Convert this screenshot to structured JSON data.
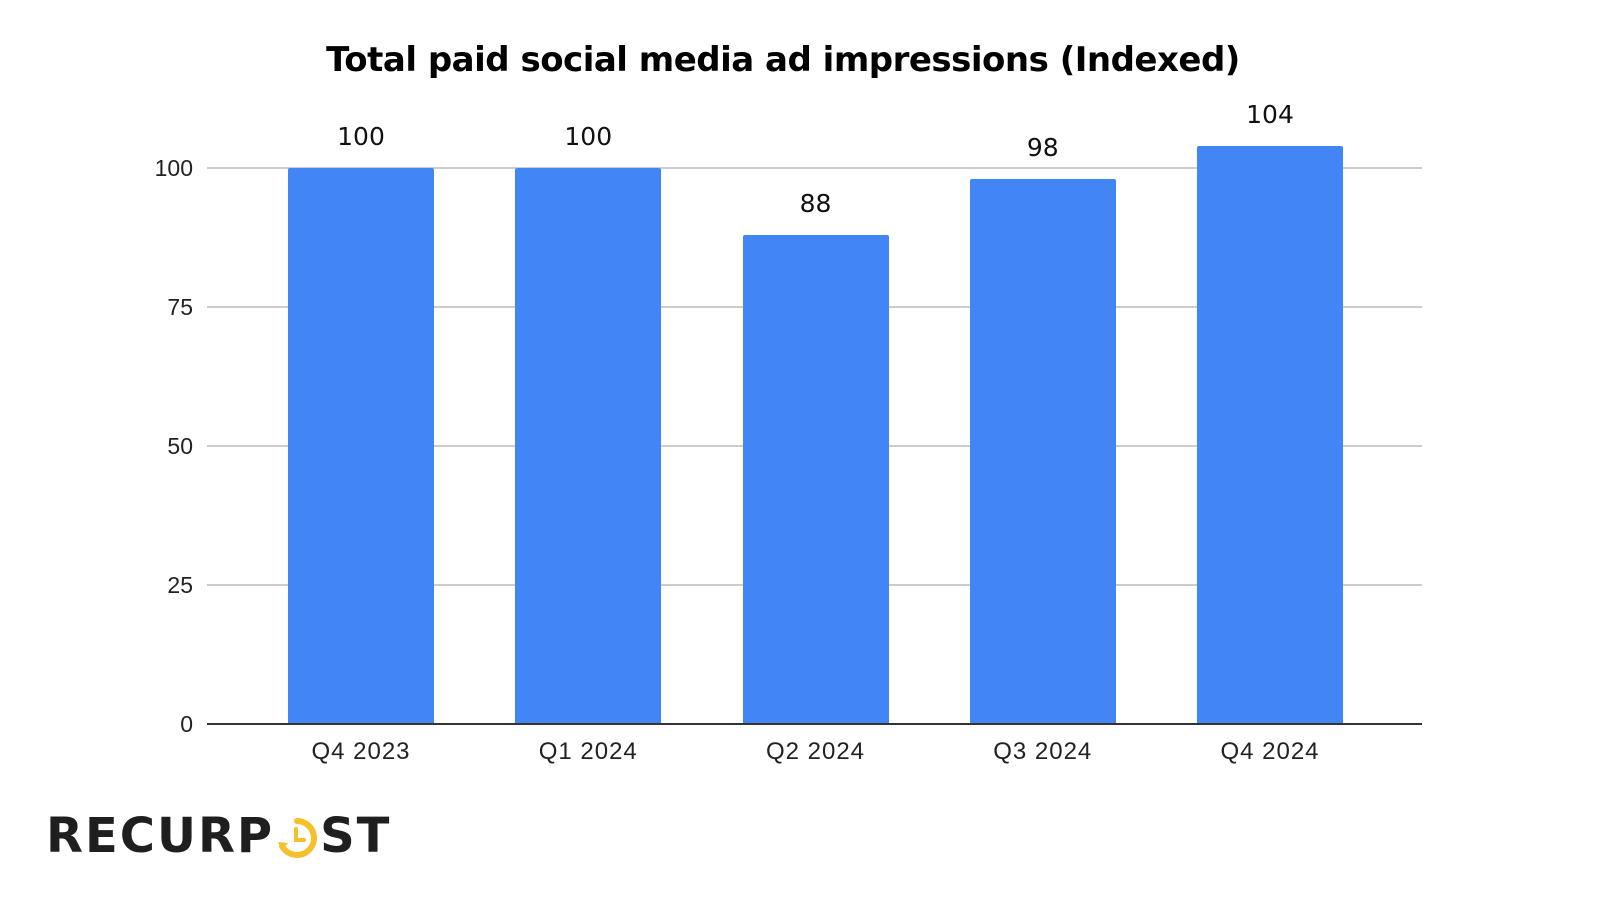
{
  "chart_data": {
    "type": "bar",
    "title": "Total paid social media ad impressions (Indexed)",
    "categories": [
      "Q4 2023",
      "Q1 2024",
      "Q2 2024",
      "Q3 2024",
      "Q4 2024"
    ],
    "values": [
      100,
      100,
      88,
      98,
      104
    ],
    "series": [
      {
        "name": "Total paid social media ad impressions (Indexed)",
        "values": [
          100,
          100,
          88,
          98,
          104
        ],
        "color": "#4285f4"
      }
    ],
    "xlabel": "",
    "ylabel": "",
    "ylim": [
      0,
      104
    ],
    "yticks": [
      0,
      25,
      50,
      75,
      100
    ],
    "grid": true,
    "legend": "none",
    "data_labels": true
  },
  "colors": {
    "bar": "#4285f4",
    "grid": "#cccccc",
    "axis": "#333333",
    "logo_text": "#1f1f1f",
    "logo_accent": "#f5c02a"
  },
  "ytick_labels": [
    "0",
    "25",
    "50",
    "75",
    "100"
  ],
  "bar_labels": [
    "100",
    "100",
    "88",
    "98",
    "104"
  ],
  "brand": {
    "logo_prefix": "RECURP",
    "logo_suffix": "ST",
    "logo_full": "RECURPOST"
  }
}
